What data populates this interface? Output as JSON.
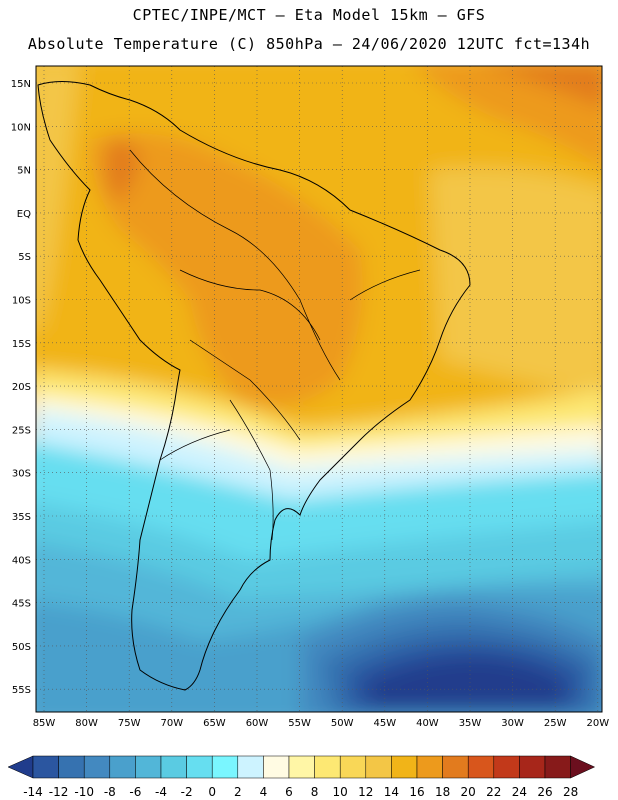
{
  "header": {
    "line1": "CPTEC/INPE/MCT –  Eta Model 15km – GFS",
    "line2": "Absolute Temperature (C) 850hPa – 24/06/2020 12UTC fct=134h"
  },
  "axes": {
    "lat_labels": [
      "15N",
      "10N",
      "5N",
      "EQ",
      "5S",
      "10S",
      "15S",
      "20S",
      "25S",
      "30S",
      "35S",
      "40S",
      "45S",
      "50S",
      "55S"
    ],
    "lon_labels": [
      "85W",
      "80W",
      "75W",
      "70W",
      "65W",
      "60W",
      "55W",
      "50W",
      "45W",
      "40W",
      "35W",
      "30W",
      "25W",
      "20W"
    ]
  },
  "colorbar": {
    "labels": [
      "-14",
      "-12",
      "-10",
      "-8",
      "-6",
      "-4",
      "-2",
      "0",
      "2",
      "4",
      "6",
      "8",
      "10",
      "12",
      "14",
      "16",
      "18",
      "20",
      "22",
      "24",
      "26",
      "28"
    ],
    "colors": [
      "#203c8c",
      "#2b56a0",
      "#3672b0",
      "#4389c0",
      "#4aa0cc",
      "#52b6d8",
      "#5acbe2",
      "#66def0",
      "#7af6ff",
      "#cdf3ff",
      "#fffbe3",
      "#fff6a6",
      "#fde873",
      "#f9d757",
      "#f3c646",
      "#f1b418",
      "#ed9a1c",
      "#e27b1e",
      "#d8561c",
      "#c2391a",
      "#a7261a",
      "#871a1a",
      "#6b0f1e"
    ],
    "under_color": "#203c8c",
    "over_color": "#6b0f1e"
  }
}
